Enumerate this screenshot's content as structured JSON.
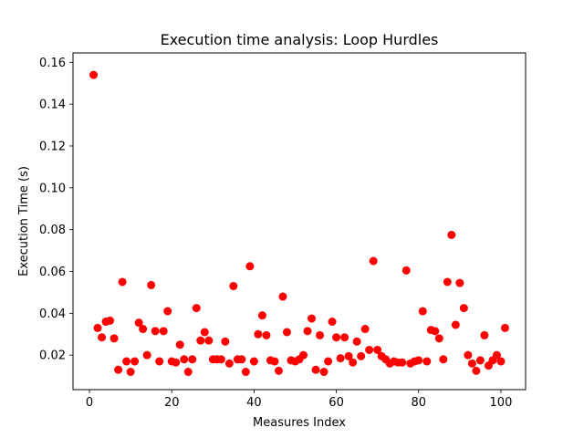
{
  "chart_data": {
    "type": "scatter",
    "title": "Execution time analysis: Loop Hurdles",
    "xlabel": "Measures Index",
    "ylabel": "Execution Time (s)",
    "xlim": [
      -4,
      106
    ],
    "ylim": [
      0.0035,
      0.1645
    ],
    "xticks": [
      0,
      20,
      40,
      60,
      80,
      100
    ],
    "yticks": [
      0.02,
      0.04,
      0.06,
      0.08,
      0.1,
      0.12,
      0.14,
      0.16
    ],
    "xtick_labels": [
      "0",
      "20",
      "40",
      "60",
      "80",
      "100"
    ],
    "ytick_labels": [
      "0.02",
      "0.04",
      "0.06",
      "0.08",
      "0.10",
      "0.12",
      "0.14",
      "0.16"
    ],
    "grid": false,
    "legend": false,
    "marker_color": "#ff0000",
    "x": [
      1,
      2,
      3,
      4,
      5,
      6,
      7,
      8,
      9,
      10,
      11,
      12,
      13,
      14,
      15,
      16,
      17,
      18,
      19,
      20,
      21,
      22,
      23,
      24,
      25,
      26,
      27,
      28,
      29,
      30,
      31,
      32,
      33,
      34,
      35,
      36,
      37,
      38,
      39,
      40,
      41,
      42,
      43,
      44,
      45,
      46,
      47,
      48,
      49,
      50,
      51,
      52,
      53,
      54,
      55,
      56,
      57,
      58,
      59,
      60,
      61,
      62,
      63,
      64,
      65,
      66,
      67,
      68,
      69,
      70,
      71,
      72,
      73,
      74,
      75,
      76,
      77,
      78,
      79,
      80,
      81,
      82,
      83,
      84,
      85,
      86,
      87,
      88,
      89,
      90,
      91,
      92,
      93,
      94,
      95,
      96,
      97,
      98,
      99,
      100,
      101
    ],
    "y": [
      0.154,
      0.033,
      0.0285,
      0.036,
      0.0365,
      0.028,
      0.013,
      0.055,
      0.017,
      0.012,
      0.017,
      0.0355,
      0.0325,
      0.02,
      0.0535,
      0.0315,
      0.017,
      0.0315,
      0.041,
      0.017,
      0.0165,
      0.025,
      0.018,
      0.012,
      0.018,
      0.0425,
      0.027,
      0.031,
      0.027,
      0.018,
      0.018,
      0.018,
      0.0265,
      0.016,
      0.053,
      0.018,
      0.018,
      0.012,
      0.0625,
      0.017,
      0.03,
      0.039,
      0.0295,
      0.0175,
      0.017,
      0.0125,
      0.048,
      0.031,
      0.0175,
      0.017,
      0.018,
      0.02,
      0.0315,
      0.0375,
      0.013,
      0.0295,
      0.012,
      0.017,
      0.036,
      0.0285,
      0.0185,
      0.0285,
      0.0195,
      0.0165,
      0.0265,
      0.0195,
      0.0325,
      0.0225,
      0.065,
      0.0225,
      0.0195,
      0.018,
      0.016,
      0.017,
      0.0165,
      0.0165,
      0.0605,
      0.016,
      0.017,
      0.0175,
      0.041,
      0.017,
      0.032,
      0.0315,
      0.028,
      0.018,
      0.055,
      0.0775,
      0.0345,
      0.0545,
      0.0425,
      0.02,
      0.016,
      0.0125,
      0.0175,
      0.0295,
      0.015,
      0.0175,
      0.02,
      0.017,
      0.033
    ]
  }
}
